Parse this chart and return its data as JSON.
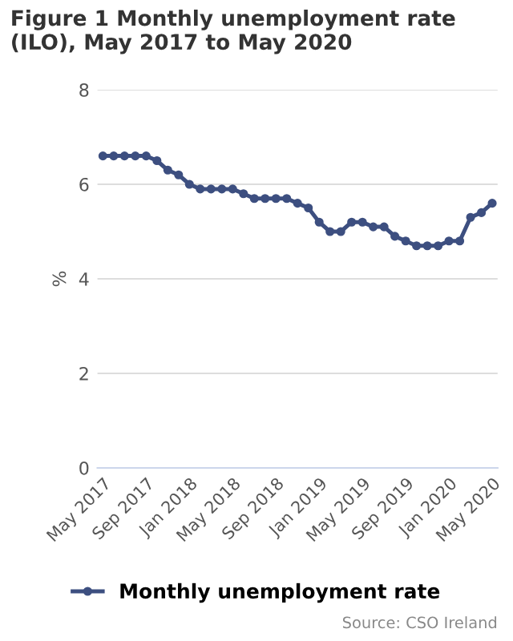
{
  "chart_data": {
    "type": "line",
    "title": "Figure 1 Monthly unemployment rate (ILO), May 2017 to May 2020",
    "ylabel": "%",
    "categories": [
      "May 2017",
      null,
      null,
      null,
      "Sep 2017",
      null,
      null,
      null,
      "Jan 2018",
      null,
      null,
      null,
      "May 2018",
      null,
      null,
      null,
      "Sep 2018",
      null,
      null,
      null,
      "Jan 2019",
      null,
      null,
      null,
      "May 2019",
      null,
      null,
      null,
      "Sep 2019",
      null,
      null,
      null,
      "Jan 2020",
      null,
      null,
      null,
      "May 2020"
    ],
    "series": [
      {
        "name": "Monthly unemployment rate",
        "color": "#3d4f80",
        "values": [
          6.6,
          6.6,
          6.6,
          6.6,
          6.6,
          6.5,
          6.3,
          6.2,
          6.0,
          5.9,
          5.9,
          5.9,
          5.9,
          5.8,
          5.7,
          5.7,
          5.7,
          5.7,
          5.6,
          5.5,
          5.2,
          5.0,
          5.0,
          5.2,
          5.2,
          5.1,
          5.1,
          4.9,
          4.8,
          4.7,
          4.7,
          4.7,
          4.8,
          4.8,
          5.3,
          5.4,
          5.6
        ]
      }
    ],
    "ylim": [
      0,
      8
    ],
    "yticks": [
      0,
      2,
      4,
      6,
      8
    ],
    "grid": "y",
    "legend": "bottom",
    "marker": "circle",
    "line_style": "solid",
    "annotations": [
      "Source: CSO Ireland"
    ]
  }
}
